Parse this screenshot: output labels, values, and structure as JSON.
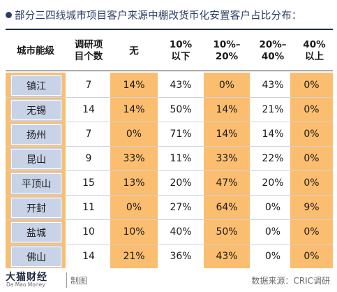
{
  "title": "部分三四线城市项目客户来源中棚改货币化安置客户占比分布：",
  "header": {
    "city_level": "城市能级",
    "project_count": "调研项\n目个数",
    "none": "无",
    "under10": "10%\n以下",
    "r10_20": "10%–\n20%",
    "r20_40": "20%–\n40%",
    "over40": "40%\n以上"
  },
  "colors": {
    "accent": "#fbbd6f",
    "city_chip": "#c8d3e8",
    "title": "#2b3f66"
  },
  "rows": [
    {
      "city": "镇江",
      "count": "7",
      "none": "14%",
      "under10": "43%",
      "r10_20": "0%",
      "r20_40": "43%",
      "over40": "0%"
    },
    {
      "city": "无锡",
      "count": "14",
      "none": "14%",
      "under10": "50%",
      "r10_20": "14%",
      "r20_40": "21%",
      "over40": "0%"
    },
    {
      "city": "扬州",
      "count": "7",
      "none": "0%",
      "under10": "71%",
      "r10_20": "14%",
      "r20_40": "14%",
      "over40": "0%"
    },
    {
      "city": "昆山",
      "count": "9",
      "none": "33%",
      "under10": "11%",
      "r10_20": "33%",
      "r20_40": "22%",
      "over40": "0%"
    },
    {
      "city": "平顶山",
      "count": "15",
      "none": "13%",
      "under10": "20%",
      "r10_20": "47%",
      "r20_40": "20%",
      "over40": "0%"
    },
    {
      "city": "开封",
      "count": "11",
      "none": "0%",
      "under10": "27%",
      "r10_20": "64%",
      "r20_40": "0%",
      "over40": "9%"
    },
    {
      "city": "盐城",
      "count": "10",
      "none": "10%",
      "under10": "40%",
      "r10_20": "50%",
      "r20_40": "0%",
      "over40": "0%"
    },
    {
      "city": "佛山",
      "count": "14",
      "none": "21%",
      "under10": "36%",
      "r10_20": "43%",
      "r20_40": "0%",
      "over40": "0%"
    }
  ],
  "footer": {
    "logo_cn": "大猫财经",
    "logo_en": "Da Mao Money",
    "made_by": "制图",
    "source": "数据来源：CRIC调研"
  }
}
